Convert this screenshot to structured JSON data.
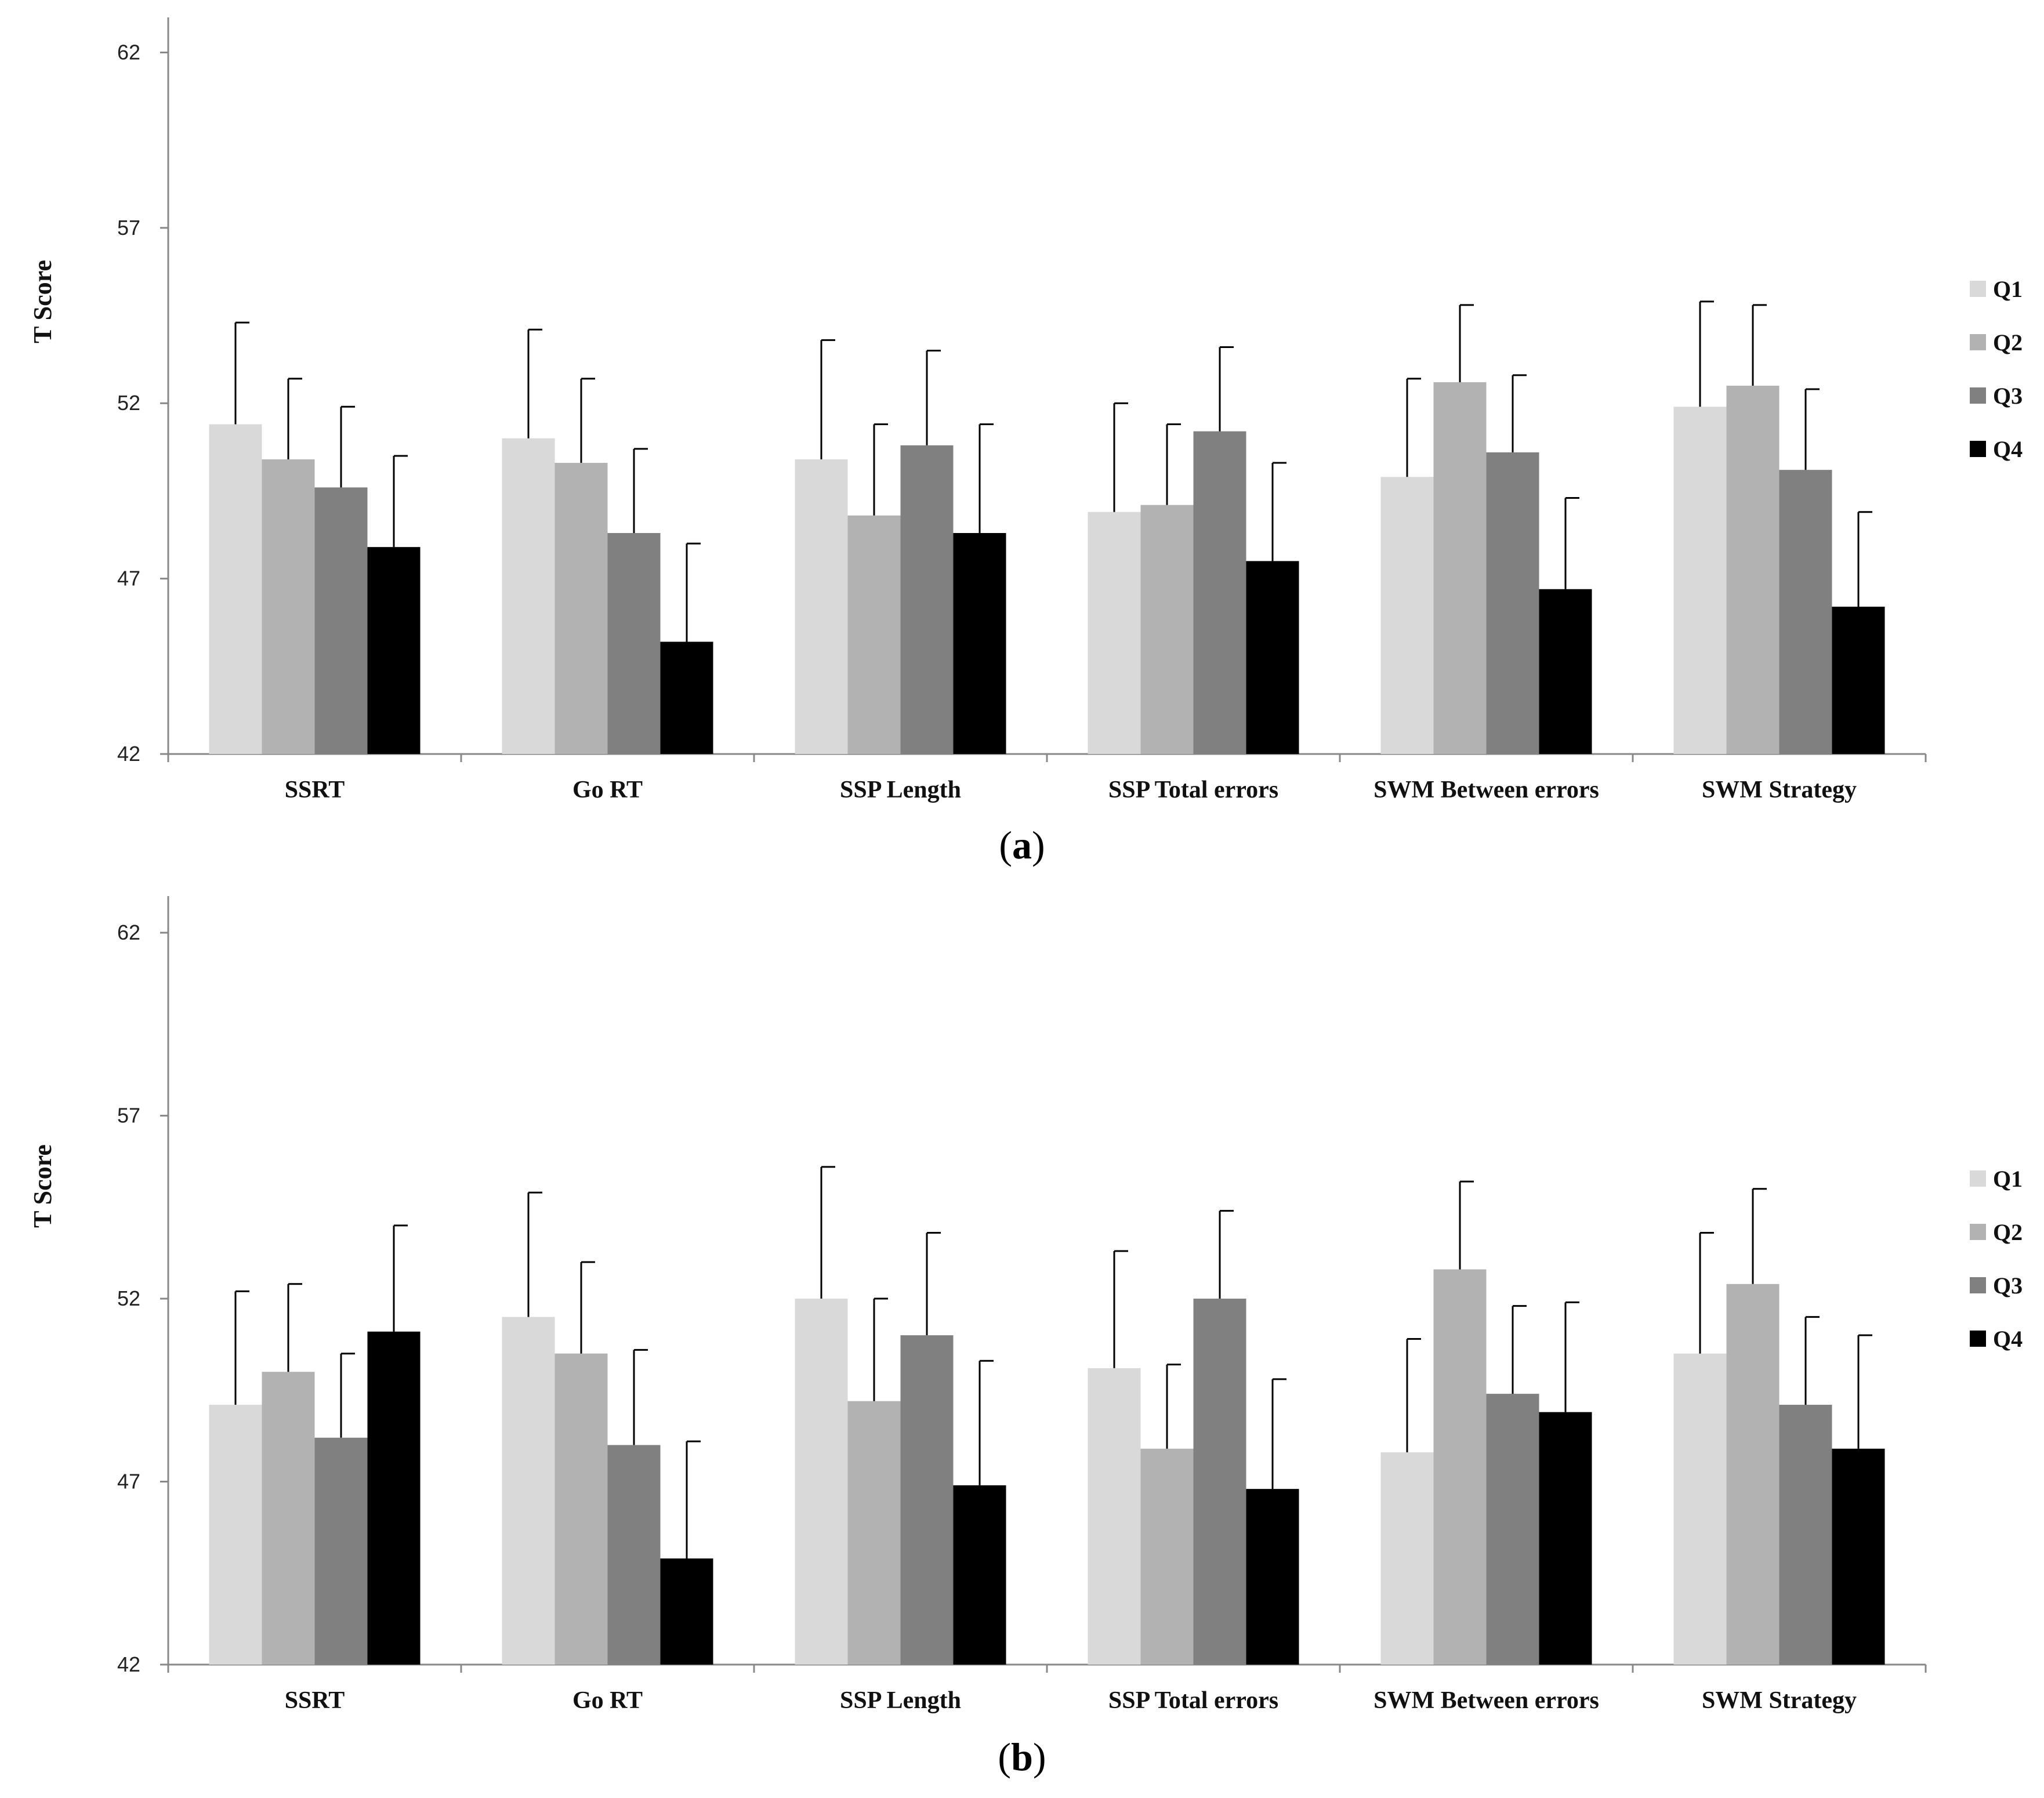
{
  "chart_data": [
    {
      "panel": "a",
      "type": "bar",
      "title": "",
      "xlabel": "",
      "ylabel": "T Score",
      "ylim": [
        42,
        63
      ],
      "yticks": [
        42,
        47,
        52,
        57,
        62
      ],
      "grid": false,
      "legend_position": "right",
      "categories": [
        "SSRT",
        "Go RT",
        "SSP Length",
        "SSP Total errors",
        "SWM Between errors",
        "SWM Strategy"
      ],
      "series": [
        {
          "name": "Q1",
          "color": "#d9d9d9",
          "values": [
            51.4,
            51.0,
            50.4,
            48.9,
            49.9,
            51.9
          ],
          "error": [
            2.9,
            3.1,
            3.4,
            3.1,
            2.8,
            3.0
          ]
        },
        {
          "name": "Q2",
          "color": "#b2b2b2",
          "values": [
            50.4,
            50.3,
            48.8,
            49.1,
            52.6,
            52.5
          ],
          "error": [
            2.3,
            2.4,
            2.6,
            2.3,
            2.2,
            2.3
          ]
        },
        {
          "name": "Q3",
          "color": "#808080",
          "values": [
            49.6,
            48.3,
            50.8,
            51.2,
            50.6,
            50.1
          ],
          "error": [
            2.3,
            2.4,
            2.7,
            2.4,
            2.2,
            2.3
          ]
        },
        {
          "name": "Q4",
          "color": "#000000",
          "values": [
            47.9,
            45.2,
            48.3,
            47.5,
            46.7,
            46.2
          ],
          "error": [
            2.6,
            2.8,
            3.1,
            2.8,
            2.6,
            2.7
          ]
        }
      ]
    },
    {
      "panel": "b",
      "type": "bar",
      "title": "",
      "xlabel": "",
      "ylabel": "T Score",
      "ylim": [
        42,
        63
      ],
      "yticks": [
        42,
        47,
        52,
        57,
        62
      ],
      "grid": false,
      "legend_position": "right",
      "categories": [
        "SSRT",
        "Go RT",
        "SSP Length",
        "SSP Total errors",
        "SWM Between errors",
        "SWM Strategy"
      ],
      "series": [
        {
          "name": "Q1",
          "color": "#d9d9d9",
          "values": [
            49.1,
            51.5,
            52.0,
            50.1,
            47.8,
            50.5
          ],
          "error": [
            3.1,
            3.4,
            3.6,
            3.2,
            3.1,
            3.3
          ]
        },
        {
          "name": "Q2",
          "color": "#b2b2b2",
          "values": [
            50.0,
            50.5,
            49.2,
            47.9,
            52.8,
            52.4
          ],
          "error": [
            2.4,
            2.5,
            2.8,
            2.3,
            2.4,
            2.6
          ]
        },
        {
          "name": "Q3",
          "color": "#808080",
          "values": [
            48.2,
            48.0,
            51.0,
            52.0,
            49.4,
            49.1
          ],
          "error": [
            2.3,
            2.6,
            2.8,
            2.4,
            2.4,
            2.4
          ]
        },
        {
          "name": "Q4",
          "color": "#000000",
          "values": [
            51.1,
            44.9,
            46.9,
            46.8,
            48.9,
            47.9
          ],
          "error": [
            2.9,
            3.2,
            3.4,
            3.0,
            3.0,
            3.1
          ]
        }
      ]
    }
  ],
  "panel_labels": {
    "a": {
      "open": "(",
      "letter": "a",
      "close": ")"
    },
    "b": {
      "open": "(",
      "letter": "b",
      "close": ")"
    }
  }
}
